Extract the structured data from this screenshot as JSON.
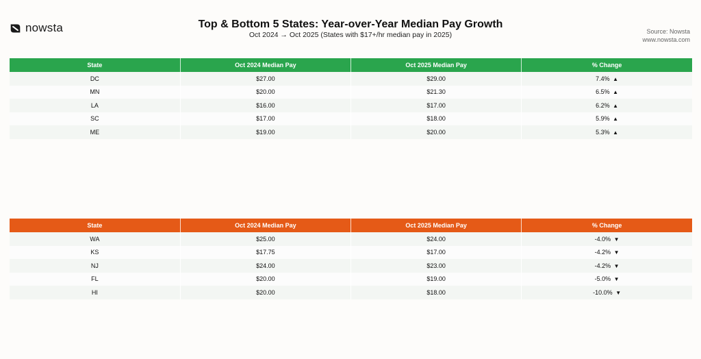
{
  "logo": {
    "text": "nowsta"
  },
  "title": "Top & Bottom 5 States: Year-over-Year Median Pay Growth",
  "subtitle": "Oct 2024 → Oct 2025 (States with $17+/hr median pay in 2025)",
  "source": {
    "line1": "Source: Nowsta",
    "line2": "www.nowsta.com"
  },
  "colors": {
    "top_header": "#2aa54d",
    "bottom_header": "#e55a17"
  },
  "columns": [
    "State",
    "Oct 2024 Median Pay",
    "Oct 2025 Median Pay",
    "% Change"
  ],
  "top": {
    "rows": [
      {
        "state": "DC",
        "pay2024": "$27.00",
        "pay2025": "$29.00",
        "change": "7.4%",
        "arrow": "▲"
      },
      {
        "state": "MN",
        "pay2024": "$20.00",
        "pay2025": "$21.30",
        "change": "6.5%",
        "arrow": "▲"
      },
      {
        "state": "LA",
        "pay2024": "$16.00",
        "pay2025": "$17.00",
        "change": "6.2%",
        "arrow": "▲"
      },
      {
        "state": "SC",
        "pay2024": "$17.00",
        "pay2025": "$18.00",
        "change": "5.9%",
        "arrow": "▲"
      },
      {
        "state": "ME",
        "pay2024": "$19.00",
        "pay2025": "$20.00",
        "change": "5.3%",
        "arrow": "▲"
      }
    ]
  },
  "bottom": {
    "rows": [
      {
        "state": "WA",
        "pay2024": "$25.00",
        "pay2025": "$24.00",
        "change": "-4.0%",
        "arrow": "▼"
      },
      {
        "state": "KS",
        "pay2024": "$17.75",
        "pay2025": "$17.00",
        "change": "-4.2%",
        "arrow": "▼"
      },
      {
        "state": "NJ",
        "pay2024": "$24.00",
        "pay2025": "$23.00",
        "change": "-4.2%",
        "arrow": "▼"
      },
      {
        "state": "FL",
        "pay2024": "$20.00",
        "pay2025": "$19.00",
        "change": "-5.0%",
        "arrow": "▼"
      },
      {
        "state": "HI",
        "pay2024": "$20.00",
        "pay2025": "$18.00",
        "change": "-10.0%",
        "arrow": "▼"
      }
    ]
  }
}
